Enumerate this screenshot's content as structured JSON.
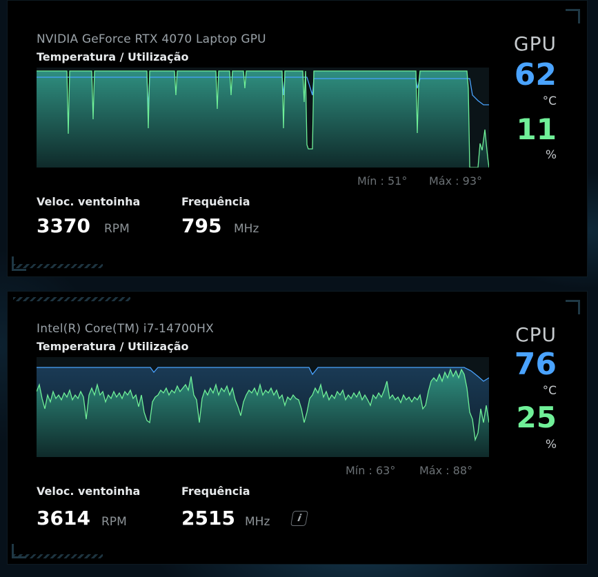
{
  "colors": {
    "temp": "#4aa3ff",
    "util": "#70f098",
    "panel": "#000000",
    "background": "#07111a"
  },
  "gpu": {
    "device": "NVIDIA GeForce RTX 4070 Laptop GPU",
    "subtitle": "Temperatura / Utilização",
    "badge": "GPU",
    "temperature": "62",
    "temp_unit": "°C",
    "utilization": "11",
    "util_unit": "%",
    "min_label": "Mín : 51°",
    "max_label": "Máx : 93°",
    "fan_label": "Veloc. ventoinha",
    "fan_value": "3370",
    "fan_unit": "RPM",
    "freq_label": "Frequência",
    "freq_value": "795",
    "freq_unit": "MHz"
  },
  "cpu": {
    "device": "Intel(R) Core(TM) i7-14700HX",
    "subtitle": "Temperatura / Utilização",
    "badge": "CPU",
    "temperature": "76",
    "temp_unit": "°C",
    "utilization": "25",
    "util_unit": "%",
    "min_label": "Mín : 63°",
    "max_label": "Máx : 88°",
    "fan_label": "Veloc. ventoinha",
    "fan_value": "3614",
    "fan_unit": "RPM",
    "freq_label": "Frequência",
    "freq_value": "2515",
    "freq_unit": "MHz",
    "info_icon": "info-icon"
  }
}
